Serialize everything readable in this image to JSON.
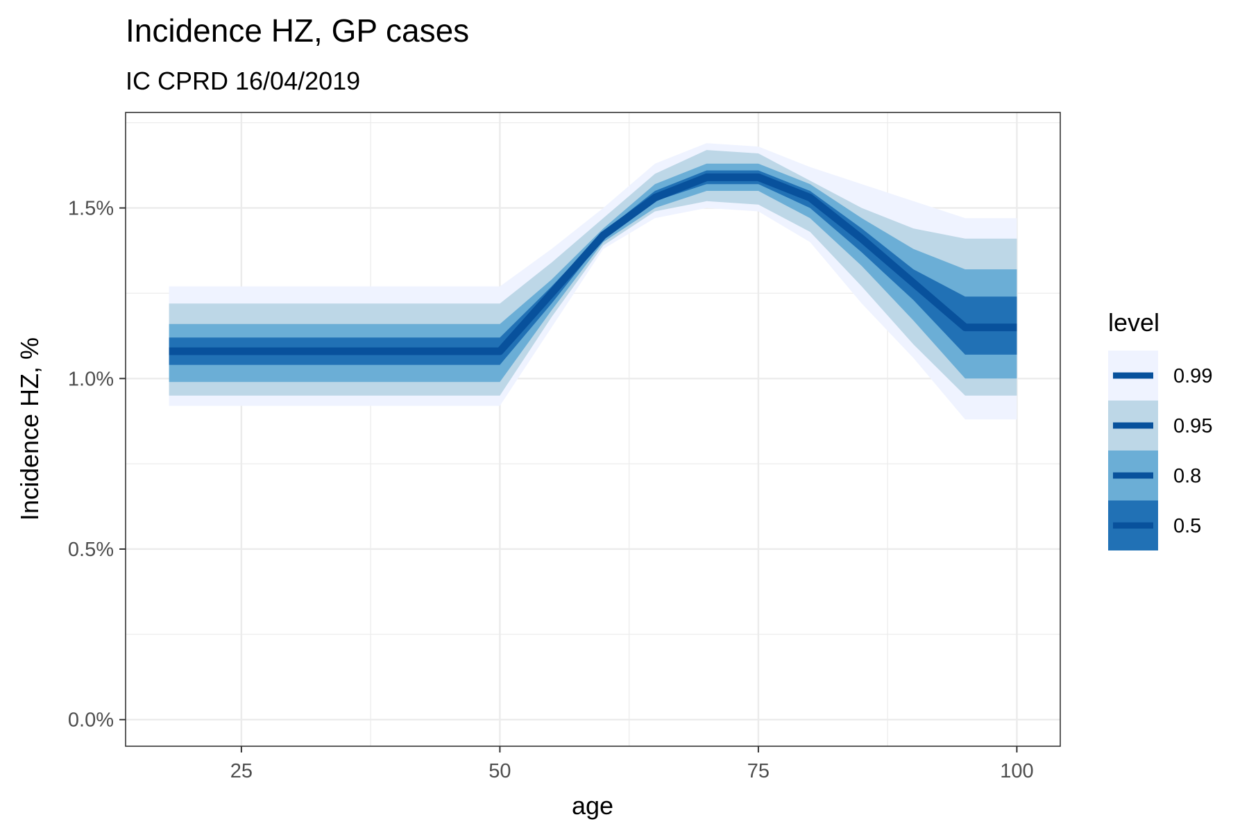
{
  "chart_data": {
    "type": "area",
    "title": "Incidence HZ, GP cases",
    "subtitle": "IC CPRD 16/04/2019",
    "xlabel": "age",
    "ylabel": "Incidence HZ, %",
    "xlim": [
      13.8,
      104.2
    ],
    "ylim": [
      -0.078,
      1.78
    ],
    "x_ticks": [
      25,
      50,
      75,
      100
    ],
    "x_tick_labels": [
      "25",
      "50",
      "75",
      "100"
    ],
    "y_ticks": [
      0.0,
      0.5,
      1.0,
      1.5
    ],
    "y_tick_labels": [
      "0.0%",
      "0.5%",
      "1.0%",
      "1.5%"
    ],
    "grid": true,
    "legend": {
      "title": "level",
      "position": "right",
      "entries": [
        "0.99",
        "0.95",
        "0.8",
        "0.5"
      ]
    },
    "colors": {
      "0.99": "#eff3ff",
      "0.95": "#bdd7e7",
      "0.8": "#6baed6",
      "0.5": "#2171b5",
      "median": "#08519c",
      "grid": "#ebebeb",
      "panel_border": "#333333"
    },
    "x": [
      18,
      50,
      55,
      60,
      65,
      70,
      75,
      80,
      85,
      90,
      95,
      100
    ],
    "median": [
      1.08,
      1.08,
      1.25,
      1.42,
      1.53,
      1.59,
      1.59,
      1.53,
      1.41,
      1.28,
      1.15,
      1.15
    ],
    "series": [
      {
        "name": "0.99",
        "lower": [
          0.92,
          0.92,
          1.15,
          1.38,
          1.47,
          1.5,
          1.49,
          1.4,
          1.22,
          1.06,
          0.88,
          0.88
        ],
        "upper": [
          1.27,
          1.27,
          1.38,
          1.5,
          1.63,
          1.69,
          1.68,
          1.62,
          1.57,
          1.52,
          1.47,
          1.47
        ]
      },
      {
        "name": "0.95",
        "lower": [
          0.95,
          0.95,
          1.18,
          1.39,
          1.49,
          1.52,
          1.51,
          1.43,
          1.27,
          1.1,
          0.95,
          0.95
        ],
        "upper": [
          1.22,
          1.22,
          1.34,
          1.47,
          1.6,
          1.67,
          1.66,
          1.58,
          1.5,
          1.44,
          1.41,
          1.41
        ]
      },
      {
        "name": "0.8",
        "lower": [
          0.99,
          0.99,
          1.2,
          1.4,
          1.5,
          1.55,
          1.55,
          1.47,
          1.33,
          1.17,
          1.0,
          1.0
        ],
        "upper": [
          1.16,
          1.16,
          1.29,
          1.44,
          1.57,
          1.63,
          1.63,
          1.57,
          1.47,
          1.38,
          1.32,
          1.32
        ]
      },
      {
        "name": "0.5",
        "lower": [
          1.04,
          1.04,
          1.22,
          1.41,
          1.52,
          1.57,
          1.57,
          1.5,
          1.37,
          1.23,
          1.07,
          1.07
        ],
        "upper": [
          1.12,
          1.12,
          1.27,
          1.43,
          1.55,
          1.61,
          1.61,
          1.55,
          1.44,
          1.32,
          1.24,
          1.24
        ]
      }
    ]
  }
}
